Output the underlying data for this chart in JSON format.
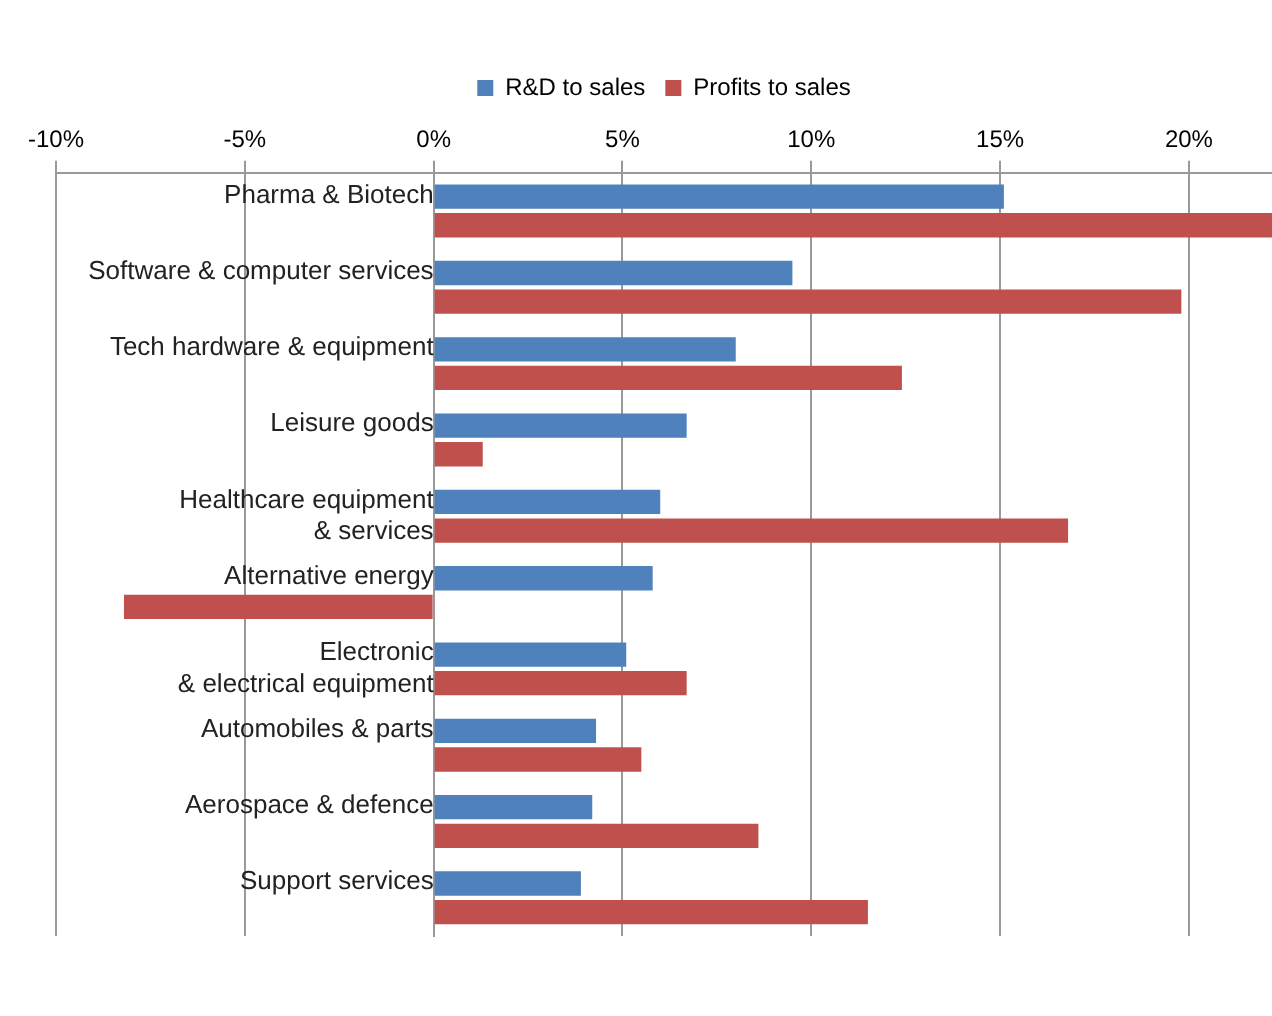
{
  "chart_data": {
    "type": "bar",
    "orientation": "horizontal",
    "categories": [
      "Pharma & Biotech",
      "Software & computer services",
      "Tech hardware & equipment",
      "Leisure goods",
      "Healthcare equipment\n& services",
      "Alternative energy",
      "Electronic\n& electrical equipment",
      "Automobiles & parts",
      "Aerospace & defence",
      "Support services"
    ],
    "series": [
      {
        "name": "R&D to sales",
        "color": "#4f81bd",
        "values": [
          15.1,
          9.5,
          8.0,
          6.7,
          6.0,
          5.8,
          5.1,
          4.3,
          4.2,
          3.9
        ]
      },
      {
        "name": "Profits to sales",
        "color": "#c0504d",
        "values": [
          22.2,
          19.8,
          12.4,
          1.3,
          16.8,
          -8.2,
          6.7,
          5.5,
          8.6,
          11.5
        ]
      }
    ],
    "xlim": [
      -10,
      22.2
    ],
    "xticks": [
      {
        "value": -10,
        "label": "-10%"
      },
      {
        "value": -5,
        "label": "-5%"
      },
      {
        "value": 0,
        "label": "0%"
      },
      {
        "value": 5,
        "label": "5%"
      },
      {
        "value": 10,
        "label": "10%"
      },
      {
        "value": 15,
        "label": "15%"
      },
      {
        "value": 20,
        "label": "20%"
      }
    ],
    "grid": "x",
    "legend": "top"
  }
}
